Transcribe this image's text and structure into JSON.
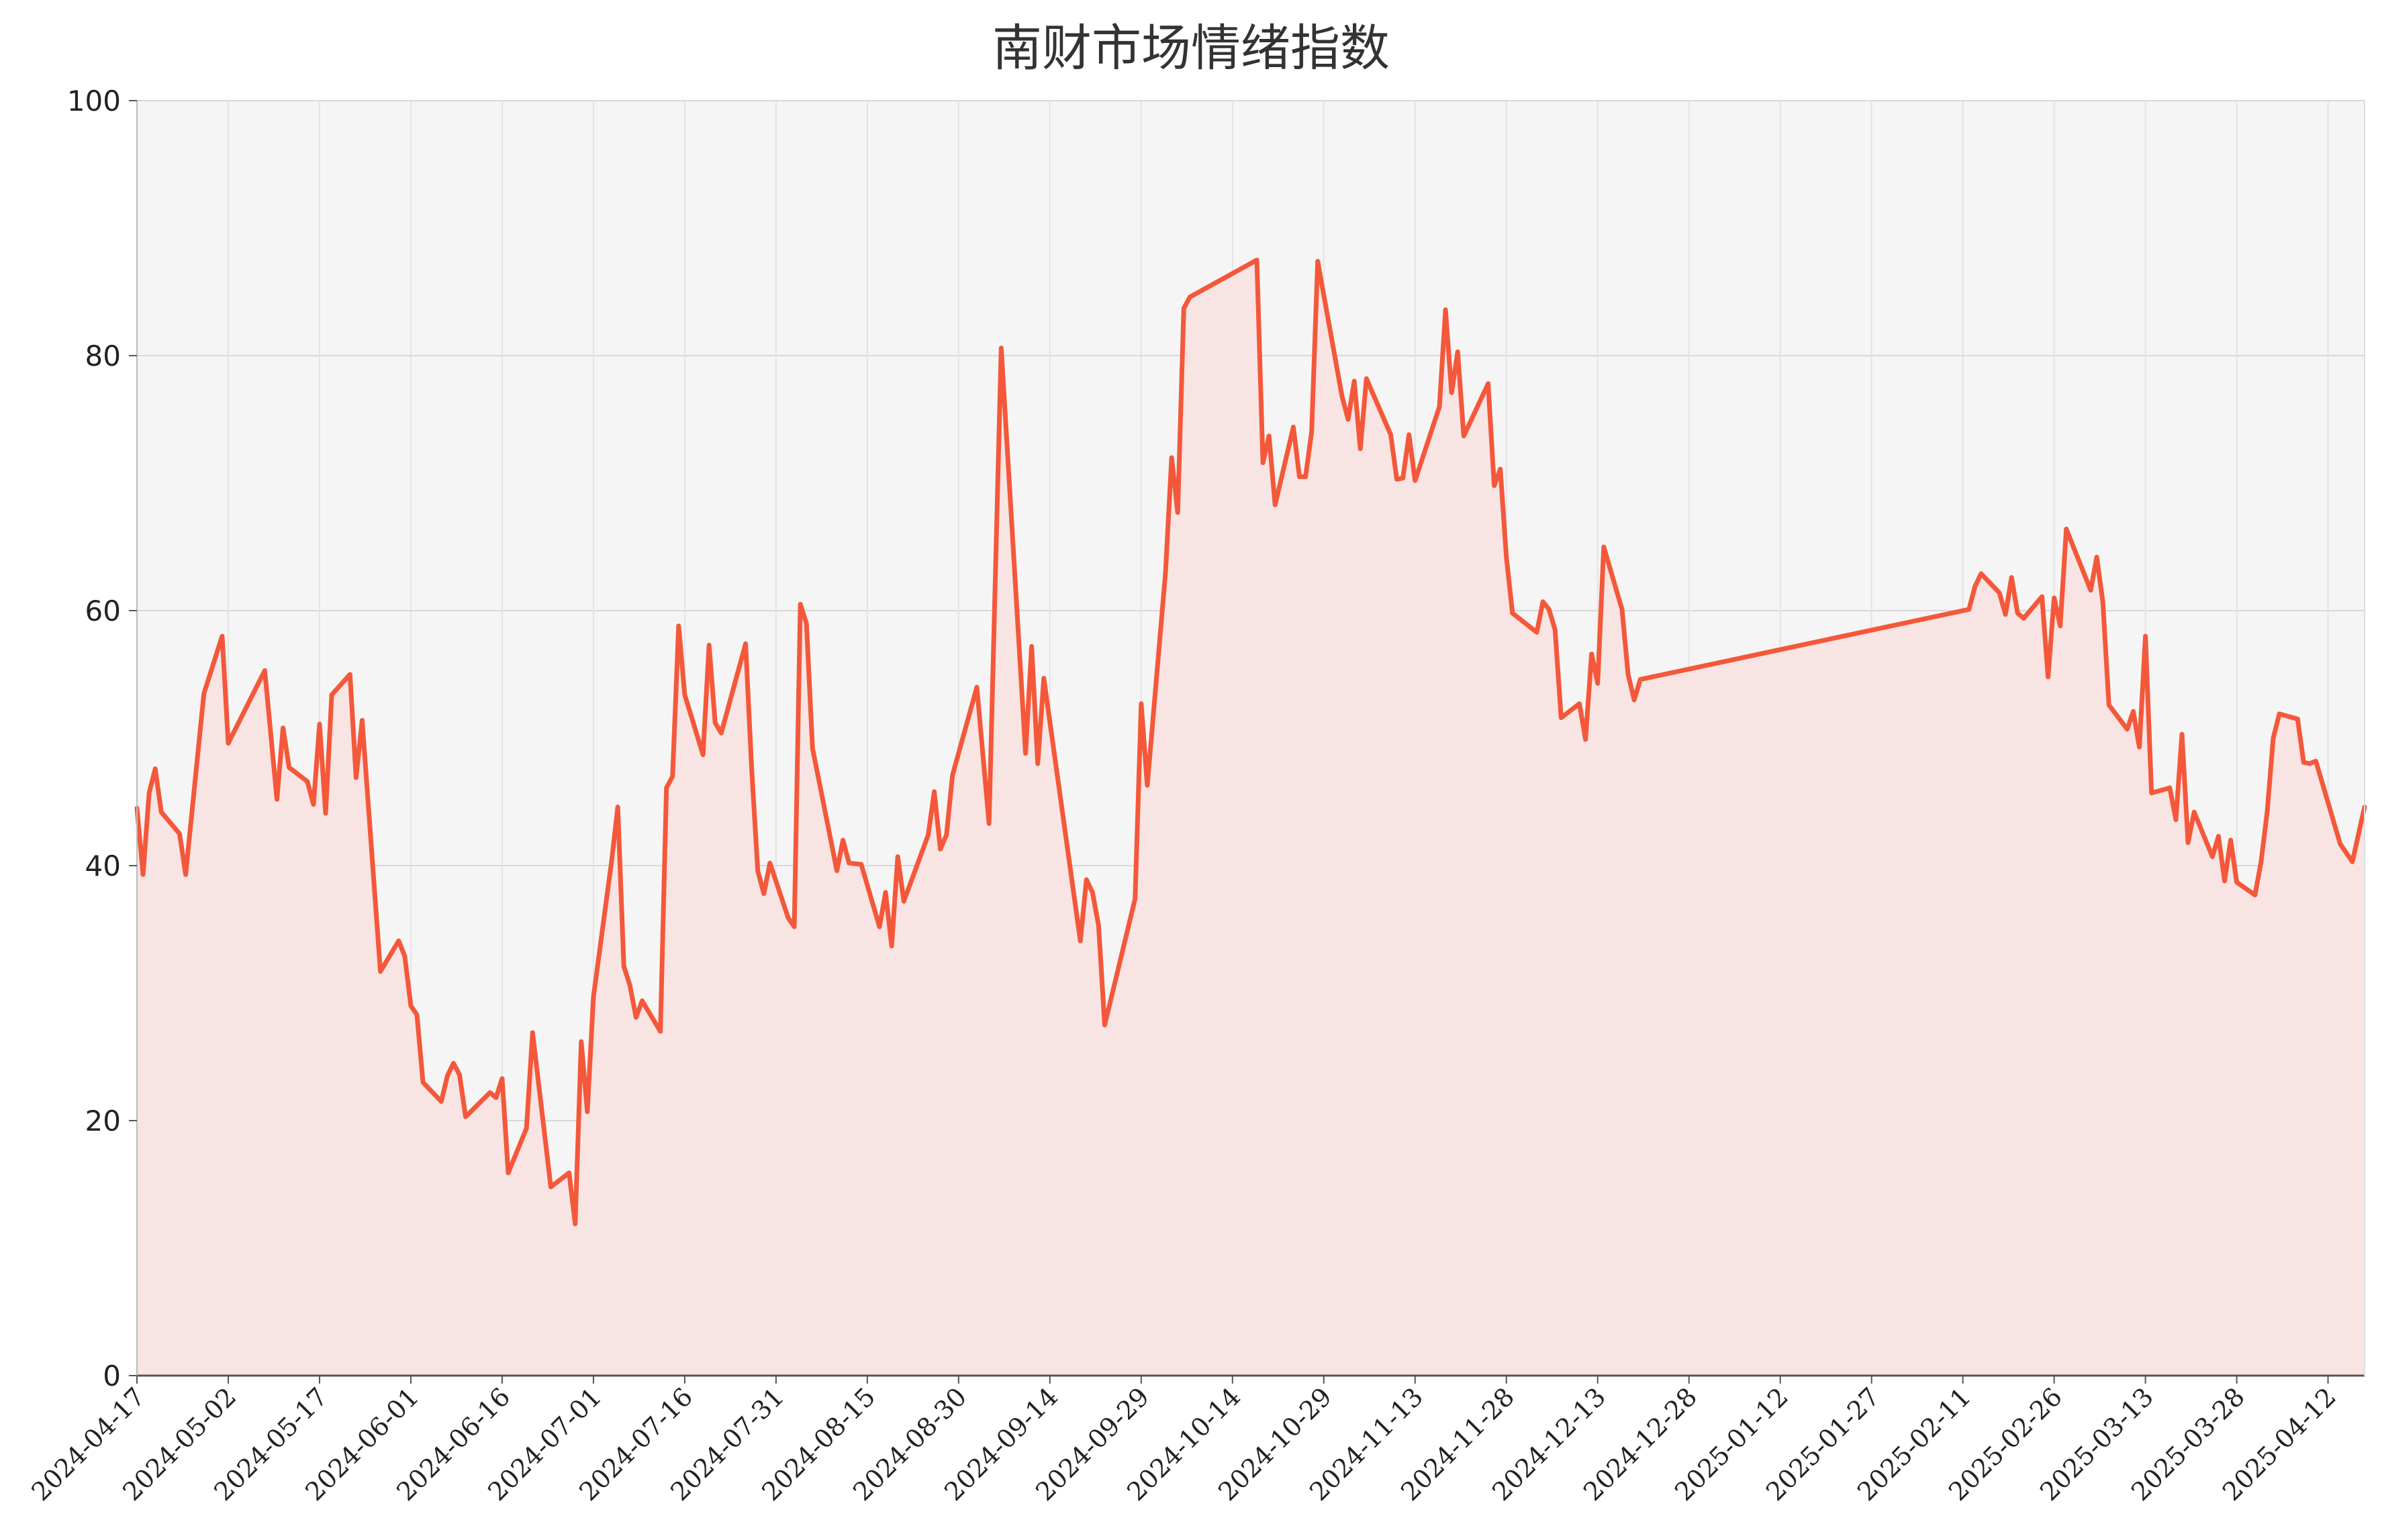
{
  "chart_data": {
    "type": "area",
    "title": "南财市场情绪指数",
    "xlabel": "",
    "ylabel": "",
    "ylim": [
      0,
      100
    ],
    "yticks": [
      "0",
      "20",
      "40",
      "60",
      "80",
      "100"
    ],
    "xlim": [
      "2024-04-17",
      "2025-04-18"
    ],
    "xticks": [
      "2024-04-17",
      "2024-05-02",
      "2024-05-17",
      "2024-06-01",
      "2024-06-16",
      "2024-07-01",
      "2024-07-16",
      "2024-07-31",
      "2024-08-15",
      "2024-08-30",
      "2024-09-14",
      "2024-09-29",
      "2024-10-14",
      "2024-10-29",
      "2024-11-13",
      "2024-11-28",
      "2024-12-13",
      "2024-12-28",
      "2025-01-12",
      "2025-01-27",
      "2025-02-11",
      "2025-02-26",
      "2025-03-13",
      "2025-03-28",
      "2025-04-12"
    ],
    "grid": true,
    "line_color": "#f4583a",
    "fill_color": "#f7e4e3",
    "background_color": "#f5f5f5",
    "series": [
      {
        "points": [
          [
            "2024-04-17",
            44.5
          ],
          [
            "2024-04-18",
            39.3
          ],
          [
            "2024-04-19",
            45.7
          ],
          [
            "2024-04-20",
            47.6
          ],
          [
            "2024-04-21",
            44.2
          ],
          [
            "2024-04-24",
            42.5
          ],
          [
            "2024-04-25",
            39.3
          ],
          [
            "2024-04-28",
            53.5
          ],
          [
            "2024-05-01",
            58.0
          ],
          [
            "2024-05-02",
            49.6
          ],
          [
            "2024-05-08",
            55.3
          ],
          [
            "2024-05-10",
            45.2
          ],
          [
            "2024-05-11",
            50.8
          ],
          [
            "2024-05-12",
            47.7
          ],
          [
            "2024-05-15",
            46.6
          ],
          [
            "2024-05-16",
            44.8
          ],
          [
            "2024-05-17",
            51.1
          ],
          [
            "2024-05-18",
            44.1
          ],
          [
            "2024-05-19",
            53.4
          ],
          [
            "2024-05-22",
            55.0
          ],
          [
            "2024-05-23",
            46.9
          ],
          [
            "2024-05-24",
            51.4
          ],
          [
            "2024-05-27",
            31.7
          ],
          [
            "2024-05-30",
            34.1
          ],
          [
            "2024-05-31",
            32.9
          ],
          [
            "2024-06-01",
            29.0
          ],
          [
            "2024-06-02",
            28.3
          ],
          [
            "2024-06-03",
            23.0
          ],
          [
            "2024-06-06",
            21.5
          ],
          [
            "2024-06-07",
            23.5
          ],
          [
            "2024-06-08",
            24.5
          ],
          [
            "2024-06-09",
            23.6
          ],
          [
            "2024-06-10",
            20.3
          ],
          [
            "2024-06-14",
            22.2
          ],
          [
            "2024-06-15",
            21.8
          ],
          [
            "2024-06-16",
            23.3
          ],
          [
            "2024-06-17",
            15.9
          ],
          [
            "2024-06-20",
            19.4
          ],
          [
            "2024-06-21",
            26.9
          ],
          [
            "2024-06-24",
            14.8
          ],
          [
            "2024-06-27",
            15.9
          ],
          [
            "2024-06-28",
            11.9
          ],
          [
            "2024-06-29",
            26.2
          ],
          [
            "2024-06-30",
            20.7
          ],
          [
            "2024-07-01",
            29.7
          ],
          [
            "2024-07-04",
            40.4
          ],
          [
            "2024-07-05",
            44.6
          ],
          [
            "2024-07-06",
            32.1
          ],
          [
            "2024-07-07",
            30.6
          ],
          [
            "2024-07-08",
            28.1
          ],
          [
            "2024-07-09",
            29.4
          ],
          [
            "2024-07-12",
            27.0
          ],
          [
            "2024-07-13",
            46.1
          ],
          [
            "2024-07-14",
            47.0
          ],
          [
            "2024-07-15",
            58.8
          ],
          [
            "2024-07-16",
            53.4
          ],
          [
            "2024-07-19",
            48.7
          ],
          [
            "2024-07-20",
            57.3
          ],
          [
            "2024-07-21",
            51.2
          ],
          [
            "2024-07-22",
            50.4
          ],
          [
            "2024-07-26",
            57.4
          ],
          [
            "2024-07-27",
            47.6
          ],
          [
            "2024-07-28",
            39.6
          ],
          [
            "2024-07-29",
            37.8
          ],
          [
            "2024-07-30",
            40.2
          ],
          [
            "2024-08-02",
            35.9
          ],
          [
            "2024-08-03",
            35.2
          ],
          [
            "2024-08-04",
            60.5
          ],
          [
            "2024-08-05",
            59.0
          ],
          [
            "2024-08-06",
            49.2
          ],
          [
            "2024-08-10",
            39.6
          ],
          [
            "2024-08-11",
            42.0
          ],
          [
            "2024-08-12",
            40.2
          ],
          [
            "2024-08-14",
            40.1
          ],
          [
            "2024-08-17",
            35.2
          ],
          [
            "2024-08-18",
            37.9
          ],
          [
            "2024-08-19",
            33.7
          ],
          [
            "2024-08-20",
            40.7
          ],
          [
            "2024-08-21",
            37.2
          ],
          [
            "2024-08-25",
            42.4
          ],
          [
            "2024-08-26",
            45.8
          ],
          [
            "2024-08-27",
            41.3
          ],
          [
            "2024-08-28",
            42.4
          ],
          [
            "2024-08-29",
            47.1
          ],
          [
            "2024-09-02",
            54.0
          ],
          [
            "2024-09-04",
            43.3
          ],
          [
            "2024-09-06",
            80.6
          ],
          [
            "2024-09-10",
            48.8
          ],
          [
            "2024-09-11",
            57.2
          ],
          [
            "2024-09-12",
            48.0
          ],
          [
            "2024-09-13",
            54.7
          ],
          [
            "2024-09-19",
            34.1
          ],
          [
            "2024-09-20",
            38.9
          ],
          [
            "2024-09-21",
            37.9
          ],
          [
            "2024-09-22",
            35.3
          ],
          [
            "2024-09-23",
            27.5
          ],
          [
            "2024-09-28",
            37.4
          ],
          [
            "2024-09-29",
            52.7
          ],
          [
            "2024-09-30",
            46.3
          ],
          [
            "2024-10-03",
            63.0
          ],
          [
            "2024-10-04",
            72.0
          ],
          [
            "2024-10-05",
            67.7
          ],
          [
            "2024-10-06",
            83.7
          ],
          [
            "2024-10-07",
            84.6
          ],
          [
            "2024-10-18",
            87.5
          ],
          [
            "2024-10-19",
            71.6
          ],
          [
            "2024-10-20",
            73.7
          ],
          [
            "2024-10-21",
            68.3
          ],
          [
            "2024-10-24",
            74.4
          ],
          [
            "2024-10-25",
            70.5
          ],
          [
            "2024-10-26",
            70.5
          ],
          [
            "2024-10-27",
            74.0
          ],
          [
            "2024-10-28",
            87.4
          ],
          [
            "2024-11-01",
            76.8
          ],
          [
            "2024-11-02",
            75.0
          ],
          [
            "2024-11-03",
            78.0
          ],
          [
            "2024-11-04",
            72.7
          ],
          [
            "2024-11-05",
            78.2
          ],
          [
            "2024-11-09",
            73.8
          ],
          [
            "2024-11-10",
            70.3
          ],
          [
            "2024-11-11",
            70.4
          ],
          [
            "2024-11-12",
            73.8
          ],
          [
            "2024-11-13",
            70.2
          ],
          [
            "2024-11-17",
            76.0
          ],
          [
            "2024-11-18",
            83.6
          ],
          [
            "2024-11-19",
            77.1
          ],
          [
            "2024-11-20",
            80.3
          ],
          [
            "2024-11-21",
            73.7
          ],
          [
            "2024-11-25",
            77.8
          ],
          [
            "2024-11-26",
            69.8
          ],
          [
            "2024-11-27",
            71.1
          ],
          [
            "2024-11-28",
            64.2
          ],
          [
            "2024-11-29",
            59.8
          ],
          [
            "2024-12-03",
            58.3
          ],
          [
            "2024-12-04",
            60.7
          ],
          [
            "2024-12-05",
            60.1
          ],
          [
            "2024-12-06",
            58.5
          ],
          [
            "2024-12-07",
            51.6
          ],
          [
            "2024-12-10",
            52.7
          ],
          [
            "2024-12-11",
            49.9
          ],
          [
            "2024-12-12",
            56.6
          ],
          [
            "2024-12-13",
            54.3
          ],
          [
            "2024-12-14",
            65.0
          ],
          [
            "2024-12-17",
            60.1
          ],
          [
            "2024-12-18",
            55.0
          ],
          [
            "2024-12-19",
            53.0
          ],
          [
            "2024-12-20",
            54.6
          ],
          [
            "2025-02-12",
            60.1
          ],
          [
            "2025-02-13",
            61.9
          ],
          [
            "2025-02-14",
            62.9
          ],
          [
            "2025-02-17",
            61.4
          ],
          [
            "2025-02-18",
            59.7
          ],
          [
            "2025-02-19",
            62.6
          ],
          [
            "2025-02-20",
            59.8
          ],
          [
            "2025-02-21",
            59.4
          ],
          [
            "2025-02-24",
            61.1
          ],
          [
            "2025-02-25",
            54.8
          ],
          [
            "2025-02-26",
            61.0
          ],
          [
            "2025-02-27",
            58.8
          ],
          [
            "2025-02-28",
            66.4
          ],
          [
            "2025-03-04",
            61.6
          ],
          [
            "2025-03-05",
            64.2
          ],
          [
            "2025-03-06",
            60.7
          ],
          [
            "2025-03-07",
            52.6
          ],
          [
            "2025-03-10",
            50.7
          ],
          [
            "2025-03-11",
            52.1
          ],
          [
            "2025-03-12",
            49.3
          ],
          [
            "2025-03-13",
            58.0
          ],
          [
            "2025-03-14",
            45.7
          ],
          [
            "2025-03-17",
            46.1
          ],
          [
            "2025-03-18",
            43.6
          ],
          [
            "2025-03-19",
            50.3
          ],
          [
            "2025-03-20",
            41.8
          ],
          [
            "2025-03-21",
            44.2
          ],
          [
            "2025-03-24",
            40.7
          ],
          [
            "2025-03-25",
            42.3
          ],
          [
            "2025-03-26",
            38.8
          ],
          [
            "2025-03-27",
            42.0
          ],
          [
            "2025-03-28",
            38.7
          ],
          [
            "2025-03-31",
            37.7
          ],
          [
            "2025-04-01",
            40.3
          ],
          [
            "2025-04-02",
            44.2
          ],
          [
            "2025-04-03",
            50.0
          ],
          [
            "2025-04-04",
            51.9
          ],
          [
            "2025-04-07",
            51.5
          ],
          [
            "2025-04-08",
            48.1
          ],
          [
            "2025-04-09",
            48.0
          ],
          [
            "2025-04-10",
            48.2
          ],
          [
            "2025-04-14",
            41.7
          ],
          [
            "2025-04-16",
            40.3
          ],
          [
            "2025-04-18",
            44.6
          ]
        ]
      }
    ]
  }
}
